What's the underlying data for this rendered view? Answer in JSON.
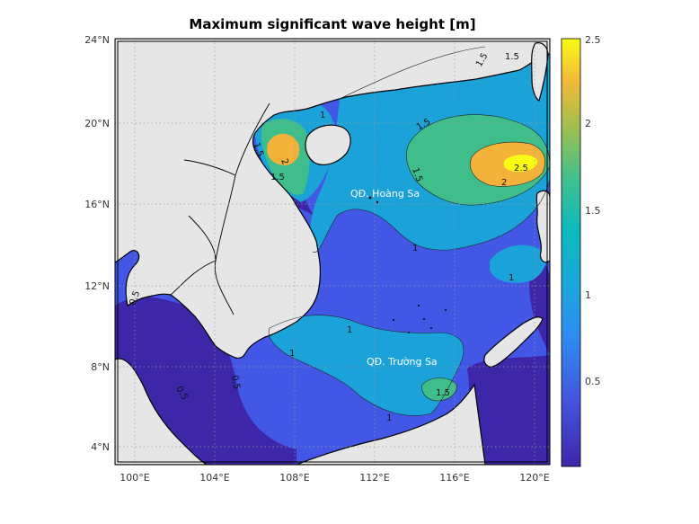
{
  "title": "Maximum significant wave height [m]",
  "x_ticks": [
    "100°E",
    "104°E",
    "108°E",
    "112°E",
    "116°E",
    "120°E"
  ],
  "y_ticks": [
    "24°N",
    "20°N",
    "16°N",
    "12°N",
    "8°N",
    "4°N"
  ],
  "colorbar_ticks": [
    "2.5",
    "2",
    "1.5",
    "1",
    "0.5"
  ],
  "place_labels": [
    "QĐ. Hoàng Sa",
    "QĐ. Trường Sa"
  ],
  "contour_labels": [
    "0.5",
    "1",
    "1.5",
    "2",
    "2.5"
  ],
  "colors": {
    "land": "#e6e6e6",
    "level_0": "#3e26a8",
    "level_05": "#4257e6",
    "level_1": "#1aa2d9",
    "level_15": "#3fbd8a",
    "level_2": "#f3b23a",
    "level_25": "#f9fb15"
  }
}
